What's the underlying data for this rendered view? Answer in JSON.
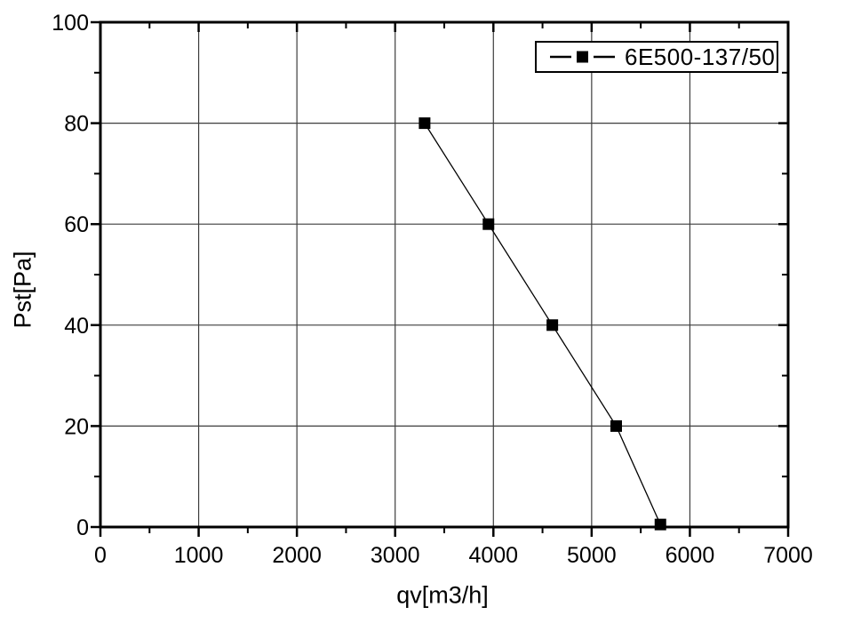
{
  "chart_data": {
    "type": "line",
    "title": "",
    "xlabel": "qv[m3/h]",
    "ylabel": "Pst[Pa]",
    "xlim": [
      0,
      7000
    ],
    "ylim": [
      0,
      100
    ],
    "x_major_ticks": [
      0,
      1000,
      2000,
      3000,
      4000,
      5000,
      6000,
      7000
    ],
    "y_major_ticks": [
      0,
      20,
      40,
      60,
      80,
      100
    ],
    "x_minor_step": 500,
    "y_minor_step": 10,
    "grid": "major",
    "frame": "full-box",
    "legend_position": "top-right-inside",
    "series": [
      {
        "name": "6E500-137/50",
        "marker": "filled-square",
        "line_style": "solid",
        "color": "#000000",
        "points": [
          [
            3300,
            80
          ],
          [
            3950,
            60
          ],
          [
            4600,
            40
          ],
          [
            5250,
            20
          ],
          [
            5700,
            0.5
          ]
        ]
      }
    ]
  },
  "colors": {
    "background": "#ffffff",
    "axis": "#000000",
    "grid": "#3d3d3d",
    "text": "#000000"
  }
}
